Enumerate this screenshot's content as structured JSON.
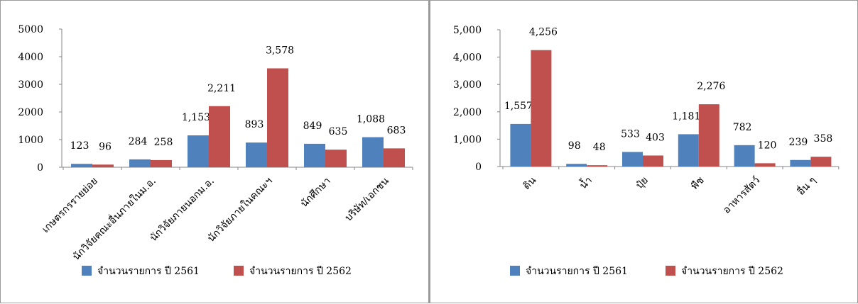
{
  "chart_data": [
    {
      "type": "bar",
      "title": "",
      "xlabel": "",
      "ylabel": "",
      "ylim": [
        0,
        5000
      ],
      "yticks": [
        "0",
        "1000",
        "2000",
        "3000",
        "4000",
        "5000"
      ],
      "grid": false,
      "legend": "bottom",
      "categories": [
        "เกษตรกรรายย่อย",
        "นักวิจัยคณะอื่นภายในม.อ.",
        "นักวิจัยภายนอกม.อ.",
        "นักวิจัยภายในคณะฯ",
        "นักศึกษา",
        "บริษัท/เอกชน"
      ],
      "series": [
        {
          "name": "จำนวนรายการ ปี 2561",
          "color": "#4f81bd",
          "values": [
            123,
            284,
            1153,
            893,
            849,
            1088
          ],
          "labels": [
            "123",
            "284",
            "1,153",
            "893",
            "849",
            "1,088"
          ]
        },
        {
          "name": "จำนวนรายการ ปี 2562",
          "color": "#c0504d",
          "values": [
            96,
            258,
            2211,
            3578,
            635,
            683
          ],
          "labels": [
            "96",
            "258",
            "2,211",
            "3,578",
            "635",
            "683"
          ]
        }
      ]
    },
    {
      "type": "bar",
      "title": "",
      "xlabel": "",
      "ylabel": "",
      "ylim": [
        0,
        5000
      ],
      "yticks": [
        "0",
        "1,000",
        "2,000",
        "3,000",
        "4,000",
        "5,000"
      ],
      "grid": false,
      "legend": "bottom",
      "categories": [
        "ดิน",
        "น้ำ",
        "ปุ๋ย",
        "พืช",
        "อาหารสัตว์",
        "อื่น ๆ"
      ],
      "series": [
        {
          "name": "จำนวนรายการ ปี 2561",
          "color": "#4f81bd",
          "values": [
            1557,
            98,
            533,
            1181,
            782,
            239
          ],
          "labels": [
            "1,557",
            "98",
            "533",
            "1,181",
            "782",
            "239"
          ]
        },
        {
          "name": "จำนวนรายการ ปี 2562",
          "color": "#c0504d",
          "values": [
            4256,
            48,
            403,
            2276,
            120,
            358
          ],
          "labels": [
            "4,256",
            "48",
            "403",
            "2,276",
            "120",
            "358"
          ]
        }
      ]
    }
  ]
}
